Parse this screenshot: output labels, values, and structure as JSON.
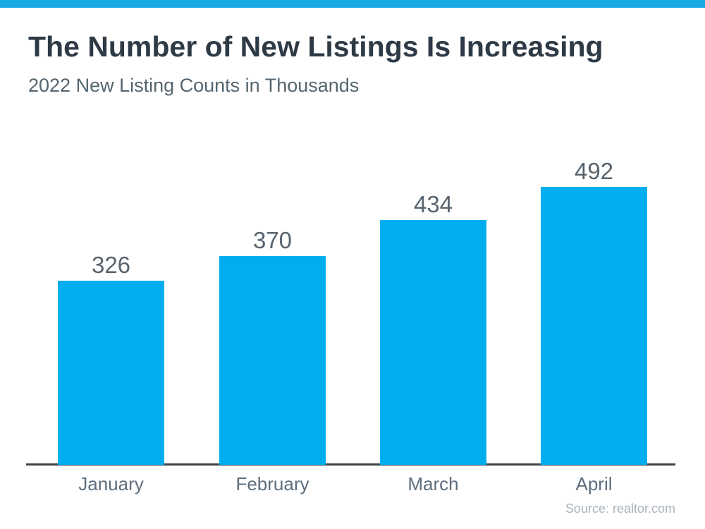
{
  "chart_data": {
    "type": "bar",
    "title": "The Number of New Listings Is Increasing",
    "subtitle": "2022 New Listing Counts in Thousands",
    "categories": [
      "January",
      "February",
      "March",
      "April"
    ],
    "values": [
      326,
      370,
      434,
      492
    ],
    "value_labels": [
      "326",
      "370",
      "434",
      "492"
    ],
    "xlabel": "",
    "ylabel": "",
    "ylim": [
      0,
      520
    ],
    "grid": false,
    "legend": false,
    "data_labels_position": "above-bars",
    "source": "Source: realtor.com"
  },
  "colors": {
    "accent_strip": "#18a8e2",
    "bar_fill": "#00aeef",
    "title_text": "#2e3a45",
    "subtitle_text": "#54656f",
    "value_label_text": "#57636e",
    "tick_label_text": "#5e6e7e",
    "axis_line": "#3c4347",
    "source_text": "#aab3bd",
    "background": "#ffffff"
  }
}
